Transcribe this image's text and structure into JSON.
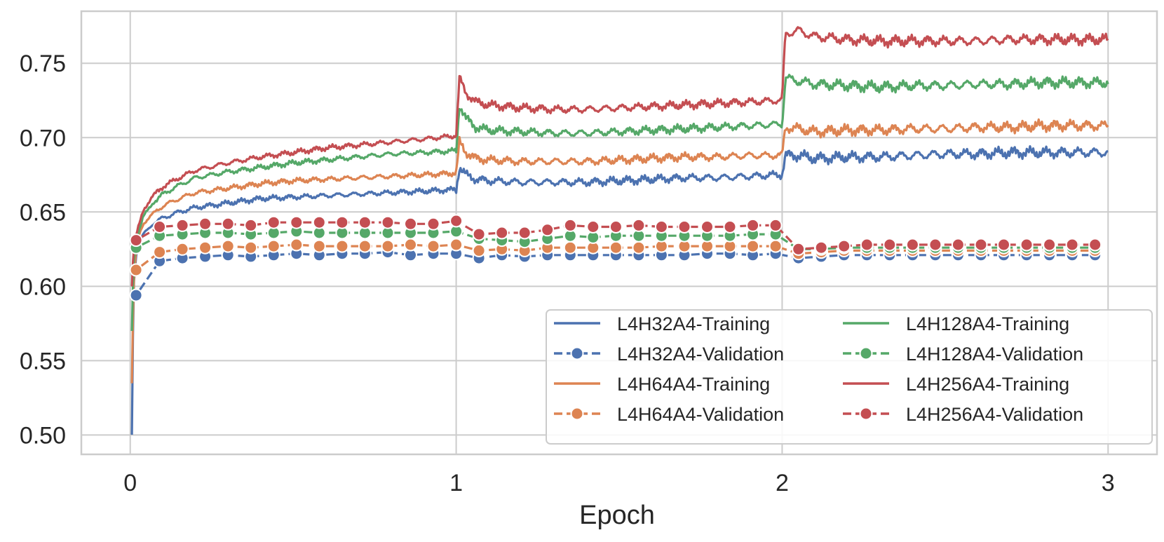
{
  "chart_data": {
    "type": "line",
    "title": "",
    "xlabel": "Epoch",
    "ylabel": "",
    "xlim": [
      -0.15,
      3.15
    ],
    "ylim": [
      0.487,
      0.785
    ],
    "xticks": [
      0,
      1,
      2,
      3
    ],
    "xtick_labels": [
      "0",
      "1",
      "2",
      "3"
    ],
    "yticks": [
      0.5,
      0.55,
      0.6,
      0.65,
      0.7,
      0.75
    ],
    "ytick_labels": [
      "0.50",
      "0.55",
      "0.60",
      "0.65",
      "0.70",
      "0.75"
    ],
    "grid": true,
    "legend_position": "lower-right",
    "legend_columns": 2,
    "colors": {
      "L4H32A4": "#4c72b0",
      "L4H64A4": "#dd8452",
      "L4H128A4": "#55a868",
      "L4H256A4": "#c44e52"
    },
    "training_series": [
      {
        "name": "L4H32A4-Training",
        "color": "#4c72b0",
        "x": [
          0.005,
          0.01,
          0.02,
          0.04,
          0.07,
          0.1,
          0.15,
          0.2,
          0.3,
          0.4,
          0.5,
          0.6,
          0.7,
          0.8,
          0.9,
          0.99,
          1.0,
          1.01,
          1.03,
          1.06,
          1.1,
          1.2,
          1.3,
          1.4,
          1.5,
          1.6,
          1.7,
          1.8,
          1.9,
          1.99,
          2.0,
          2.01,
          2.05,
          2.1,
          2.2,
          2.3,
          2.4,
          2.5,
          2.6,
          2.7,
          2.8,
          2.9,
          3.0
        ],
        "y": [
          0.5,
          0.6,
          0.625,
          0.635,
          0.642,
          0.646,
          0.65,
          0.653,
          0.656,
          0.659,
          0.66,
          0.661,
          0.662,
          0.663,
          0.664,
          0.665,
          0.665,
          0.68,
          0.675,
          0.672,
          0.671,
          0.67,
          0.67,
          0.67,
          0.671,
          0.672,
          0.673,
          0.673,
          0.674,
          0.675,
          0.675,
          0.688,
          0.688,
          0.686,
          0.687,
          0.687,
          0.688,
          0.689,
          0.689,
          0.69,
          0.69,
          0.69,
          0.69
        ]
      },
      {
        "name": "L4H64A4-Training",
        "color": "#dd8452",
        "x": [
          0.005,
          0.01,
          0.02,
          0.04,
          0.07,
          0.1,
          0.15,
          0.2,
          0.3,
          0.4,
          0.5,
          0.6,
          0.7,
          0.8,
          0.9,
          0.99,
          1.0,
          1.01,
          1.03,
          1.06,
          1.1,
          1.2,
          1.3,
          1.4,
          1.5,
          1.6,
          1.7,
          1.8,
          1.9,
          1.99,
          2.0,
          2.01,
          2.05,
          2.1,
          2.2,
          2.3,
          2.4,
          2.5,
          2.6,
          2.7,
          2.8,
          2.9,
          3.0
        ],
        "y": [
          0.535,
          0.6,
          0.63,
          0.642,
          0.649,
          0.654,
          0.659,
          0.663,
          0.666,
          0.669,
          0.671,
          0.672,
          0.673,
          0.674,
          0.675,
          0.676,
          0.676,
          0.697,
          0.69,
          0.686,
          0.685,
          0.684,
          0.684,
          0.684,
          0.685,
          0.686,
          0.687,
          0.687,
          0.688,
          0.688,
          0.688,
          0.707,
          0.706,
          0.704,
          0.705,
          0.705,
          0.706,
          0.706,
          0.707,
          0.707,
          0.708,
          0.708,
          0.708
        ]
      },
      {
        "name": "L4H128A4-Training",
        "color": "#55a868",
        "x": [
          0.005,
          0.01,
          0.02,
          0.04,
          0.07,
          0.1,
          0.15,
          0.2,
          0.3,
          0.4,
          0.5,
          0.6,
          0.7,
          0.8,
          0.9,
          0.99,
          1.0,
          1.01,
          1.03,
          1.06,
          1.1,
          1.2,
          1.3,
          1.4,
          1.5,
          1.6,
          1.7,
          1.8,
          1.9,
          1.99,
          2.0,
          2.01,
          2.05,
          2.1,
          2.2,
          2.3,
          2.4,
          2.5,
          2.6,
          2.7,
          2.8,
          2.9,
          3.0
        ],
        "y": [
          0.57,
          0.615,
          0.633,
          0.647,
          0.656,
          0.662,
          0.668,
          0.673,
          0.677,
          0.68,
          0.683,
          0.685,
          0.687,
          0.689,
          0.69,
          0.691,
          0.691,
          0.722,
          0.713,
          0.707,
          0.705,
          0.704,
          0.703,
          0.703,
          0.704,
          0.705,
          0.706,
          0.707,
          0.708,
          0.709,
          0.709,
          0.74,
          0.738,
          0.736,
          0.735,
          0.734,
          0.735,
          0.735,
          0.736,
          0.736,
          0.737,
          0.737,
          0.737
        ]
      },
      {
        "name": "L4H256A4-Training",
        "color": "#c44e52",
        "x": [
          0.005,
          0.01,
          0.02,
          0.04,
          0.07,
          0.1,
          0.15,
          0.2,
          0.3,
          0.4,
          0.5,
          0.6,
          0.7,
          0.8,
          0.9,
          0.99,
          1.0,
          1.01,
          1.03,
          1.06,
          1.1,
          1.2,
          1.3,
          1.4,
          1.5,
          1.6,
          1.7,
          1.8,
          1.9,
          1.99,
          2.0,
          2.01,
          2.05,
          2.1,
          2.2,
          2.3,
          2.4,
          2.5,
          2.6,
          2.7,
          2.8,
          2.9,
          3.0
        ],
        "y": [
          0.6,
          0.625,
          0.636,
          0.651,
          0.661,
          0.667,
          0.673,
          0.678,
          0.683,
          0.687,
          0.69,
          0.693,
          0.695,
          0.697,
          0.699,
          0.701,
          0.702,
          0.74,
          0.73,
          0.724,
          0.722,
          0.72,
          0.719,
          0.719,
          0.72,
          0.721,
          0.722,
          0.723,
          0.724,
          0.725,
          0.725,
          0.77,
          0.772,
          0.768,
          0.766,
          0.765,
          0.765,
          0.765,
          0.765,
          0.766,
          0.766,
          0.766,
          0.766
        ]
      }
    ],
    "validation_series": [
      {
        "name": "L4H32A4-Validation",
        "color": "#4c72b0",
        "x": [
          0.0,
          0.018,
          0.09,
          0.16,
          0.23,
          0.3,
          0.37,
          0.44,
          0.51,
          0.58,
          0.65,
          0.72,
          0.79,
          0.86,
          0.93,
          1.0,
          1.07,
          1.14,
          1.21,
          1.28,
          1.35,
          1.42,
          1.49,
          1.56,
          1.63,
          1.7,
          1.77,
          1.84,
          1.91,
          1.98,
          2.05,
          2.12,
          2.19,
          2.26,
          2.33,
          2.4,
          2.47,
          2.54,
          2.61,
          2.68,
          2.75,
          2.82,
          2.89,
          2.96
        ],
        "y": [
          0.594,
          0.594,
          0.617,
          0.619,
          0.62,
          0.621,
          0.62,
          0.621,
          0.622,
          0.621,
          0.622,
          0.622,
          0.623,
          0.621,
          0.622,
          0.622,
          0.619,
          0.621,
          0.62,
          0.621,
          0.621,
          0.621,
          0.621,
          0.621,
          0.621,
          0.621,
          0.622,
          0.622,
          0.621,
          0.622,
          0.619,
          0.62,
          0.621,
          0.621,
          0.621,
          0.621,
          0.621,
          0.621,
          0.621,
          0.621,
          0.621,
          0.621,
          0.621,
          0.621
        ]
      },
      {
        "name": "L4H64A4-Validation",
        "color": "#dd8452",
        "x": [
          0.0,
          0.018,
          0.09,
          0.16,
          0.23,
          0.3,
          0.37,
          0.44,
          0.51,
          0.58,
          0.65,
          0.72,
          0.79,
          0.86,
          0.93,
          1.0,
          1.07,
          1.14,
          1.21,
          1.28,
          1.35,
          1.42,
          1.49,
          1.56,
          1.63,
          1.7,
          1.77,
          1.84,
          1.91,
          1.98,
          2.05,
          2.12,
          2.19,
          2.26,
          2.33,
          2.4,
          2.47,
          2.54,
          2.61,
          2.68,
          2.75,
          2.82,
          2.89,
          2.96
        ],
        "y": [
          0.611,
          0.611,
          0.623,
          0.625,
          0.626,
          0.627,
          0.626,
          0.627,
          0.628,
          0.627,
          0.627,
          0.627,
          0.627,
          0.628,
          0.627,
          0.628,
          0.624,
          0.625,
          0.624,
          0.626,
          0.626,
          0.626,
          0.626,
          0.626,
          0.627,
          0.627,
          0.627,
          0.627,
          0.627,
          0.627,
          0.622,
          0.623,
          0.624,
          0.624,
          0.624,
          0.624,
          0.624,
          0.624,
          0.624,
          0.624,
          0.624,
          0.624,
          0.624,
          0.624
        ]
      },
      {
        "name": "L4H128A4-Validation",
        "color": "#55a868",
        "x": [
          0.0,
          0.018,
          0.09,
          0.16,
          0.23,
          0.3,
          0.37,
          0.44,
          0.51,
          0.58,
          0.65,
          0.72,
          0.79,
          0.86,
          0.93,
          1.0,
          1.07,
          1.14,
          1.21,
          1.28,
          1.35,
          1.42,
          1.49,
          1.56,
          1.63,
          1.7,
          1.77,
          1.84,
          1.91,
          1.98,
          2.05,
          2.12,
          2.19,
          2.26,
          2.33,
          2.4,
          2.47,
          2.54,
          2.61,
          2.68,
          2.75,
          2.82,
          2.89,
          2.96
        ],
        "y": [
          0.626,
          0.626,
          0.634,
          0.635,
          0.636,
          0.636,
          0.635,
          0.636,
          0.637,
          0.636,
          0.636,
          0.636,
          0.636,
          0.636,
          0.636,
          0.637,
          0.632,
          0.631,
          0.63,
          0.632,
          0.634,
          0.633,
          0.634,
          0.634,
          0.634,
          0.634,
          0.634,
          0.634,
          0.635,
          0.635,
          0.625,
          0.625,
          0.626,
          0.626,
          0.626,
          0.626,
          0.626,
          0.626,
          0.626,
          0.626,
          0.626,
          0.626,
          0.626,
          0.626
        ]
      },
      {
        "name": "L4H256A4-Validation",
        "color": "#c44e52",
        "x": [
          0.0,
          0.018,
          0.09,
          0.16,
          0.23,
          0.3,
          0.37,
          0.44,
          0.51,
          0.58,
          0.65,
          0.72,
          0.79,
          0.86,
          0.93,
          1.0,
          1.07,
          1.14,
          1.21,
          1.28,
          1.35,
          1.42,
          1.49,
          1.56,
          1.63,
          1.7,
          1.77,
          1.84,
          1.91,
          1.98,
          2.05,
          2.12,
          2.19,
          2.26,
          2.33,
          2.4,
          2.47,
          2.54,
          2.61,
          2.68,
          2.75,
          2.82,
          2.89,
          2.96
        ],
        "y": [
          0.631,
          0.631,
          0.64,
          0.641,
          0.642,
          0.642,
          0.641,
          0.643,
          0.643,
          0.643,
          0.643,
          0.643,
          0.643,
          0.642,
          0.642,
          0.644,
          0.635,
          0.636,
          0.636,
          0.638,
          0.641,
          0.64,
          0.64,
          0.641,
          0.64,
          0.64,
          0.64,
          0.64,
          0.641,
          0.641,
          0.625,
          0.626,
          0.627,
          0.628,
          0.628,
          0.628,
          0.628,
          0.628,
          0.628,
          0.628,
          0.628,
          0.628,
          0.628,
          0.628
        ]
      }
    ],
    "legend": [
      {
        "label": "L4H32A4-Training",
        "color": "#4c72b0",
        "kind": "training"
      },
      {
        "label": "L4H128A4-Training",
        "color": "#55a868",
        "kind": "training"
      },
      {
        "label": "L4H32A4-Validation",
        "color": "#4c72b0",
        "kind": "validation"
      },
      {
        "label": "L4H128A4-Validation",
        "color": "#55a868",
        "kind": "validation"
      },
      {
        "label": "L4H64A4-Training",
        "color": "#dd8452",
        "kind": "training"
      },
      {
        "label": "L4H256A4-Training",
        "color": "#c44e52",
        "kind": "training"
      },
      {
        "label": "L4H64A4-Validation",
        "color": "#dd8452",
        "kind": "validation"
      },
      {
        "label": "L4H256A4-Validation",
        "color": "#c44e52",
        "kind": "validation"
      }
    ]
  }
}
